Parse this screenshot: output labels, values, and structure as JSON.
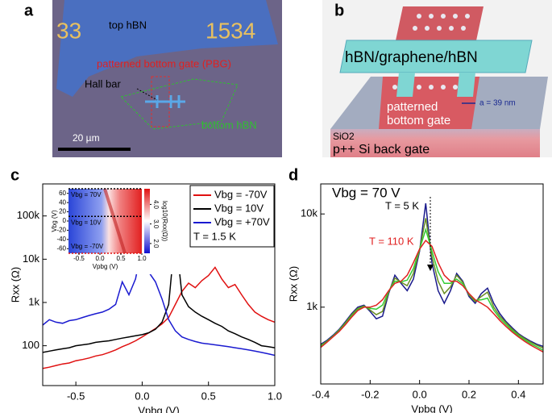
{
  "panels": {
    "a": {
      "label": "a",
      "digits_left": "33",
      "digits_right": "1534",
      "top": "top hBN",
      "pbg": "patterned bottom gate (PBG)",
      "hall": "Hall bar",
      "bottom": "bottom hBN",
      "scale": "20 µm"
    },
    "b": {
      "label": "b",
      "stack": "hBN/graphene/hBN",
      "gate": [
        "patterned",
        "bottom gate"
      ],
      "period": "a = 39 nm",
      "oxide": "SiO2",
      "back": "p++ Si back gate"
    }
  },
  "chart_data": [
    {
      "type": "line",
      "panel_label": "c",
      "log_y": true,
      "xlabel": "Vpbg (V)",
      "ylabel": "Rxx (Ω)",
      "xlim": [
        -0.75,
        1.0
      ],
      "ylim": [
        12,
        550000
      ],
      "xticks": [
        -0.5,
        {
          "value": 0,
          "label": "0.0"
        },
        0.5,
        {
          "value": 1,
          "label": "1.0"
        }
      ],
      "yticks": [
        100,
        {
          "value": 1000,
          "label": "1k"
        },
        {
          "value": 10000,
          "label": "10k"
        },
        {
          "value": 100000,
          "label": "100k"
        }
      ],
      "x": [
        -0.75,
        -0.7,
        -0.65,
        -0.6,
        -0.55,
        -0.5,
        -0.45,
        -0.4,
        -0.35,
        -0.3,
        -0.25,
        -0.2,
        -0.15,
        -0.1,
        -0.05,
        0,
        0.05,
        0.1,
        0.15,
        0.2,
        0.25,
        0.3,
        0.35,
        0.4,
        0.45,
        0.5,
        0.55,
        0.6,
        0.65,
        0.7,
        0.75,
        0.8,
        0.85,
        0.9,
        0.95,
        1.0
      ],
      "series": [
        {
          "name": "Vbg = -70V",
          "color": "#e01010",
          "values": [
            30,
            32,
            35,
            38,
            40,
            45,
            48,
            52,
            58,
            62,
            70,
            80,
            95,
            110,
            130,
            160,
            200,
            250,
            320,
            450,
            900,
            1800,
            2800,
            2200,
            3200,
            4200,
            6500,
            3500,
            2200,
            2600,
            1500,
            900,
            600,
            480,
            400,
            350
          ]
        },
        {
          "name": "Vbg = 10V",
          "color": "#000000",
          "values": [
            70,
            75,
            80,
            85,
            90,
            100,
            105,
            110,
            120,
            125,
            130,
            140,
            150,
            160,
            170,
            180,
            200,
            240,
            350,
            900,
            40000,
            1500,
            800,
            600,
            480,
            400,
            330,
            280,
            220,
            190,
            160,
            140,
            120,
            100,
            95,
            90
          ]
        },
        {
          "name": "Vbg = +70V",
          "color": "#1a1ad0",
          "values": [
            300,
            400,
            350,
            330,
            380,
            400,
            450,
            500,
            550,
            600,
            700,
            900,
            3000,
            1500,
            3500,
            20000,
            5000,
            3000,
            1200,
            400,
            220,
            160,
            140,
            125,
            115,
            110,
            105,
            100,
            95,
            90,
            85,
            80,
            75,
            70,
            65,
            60
          ]
        }
      ],
      "annotation": "T = 1.5 K",
      "inset": {
        "xlabel": "Vpbg (V)",
        "ylabel": "Vbg (V)",
        "clabel": "log10(Rxx(Ω))",
        "xlim": [
          -0.75,
          1.0
        ],
        "ylim": [
          -70,
          70
        ],
        "clim": [
          1.5,
          4.8
        ],
        "xticks": [
          -0.5,
          {
            "value": 0,
            "label": "0.0"
          },
          0.5,
          {
            "value": 1,
            "label": "1.0"
          }
        ],
        "yticks": [
          -60,
          -40,
          -20,
          0,
          20,
          40,
          60
        ],
        "cticks": [
          {
            "value": 2,
            "label": "2.0"
          },
          {
            "value": 3,
            "label": "3.0"
          },
          {
            "value": 4,
            "label": "4.0"
          }
        ],
        "lines": [
          {
            "value": 70,
            "label": "Vbg = 70V",
            "color": "#000000"
          },
          {
            "value": 10,
            "label": "Vbg = 10V",
            "color": "#000000"
          },
          {
            "value": -70,
            "label": "Vbg = -70V",
            "color": "#e01010"
          }
        ]
      }
    },
    {
      "type": "line",
      "panel_label": "d",
      "log_y": true,
      "xlabel": "Vpbg (V)",
      "ylabel": "Rxx (Ω)",
      "xlim": [
        -0.4,
        0.5
      ],
      "ylim": [
        150,
        21000
      ],
      "xticks": [
        -0.4,
        -0.2,
        {
          "value": 0,
          "label": "0.0"
        },
        0.2,
        0.4
      ],
      "yticks": [
        {
          "value": 1000,
          "label": "1k"
        },
        {
          "value": 10000,
          "label": "10k"
        }
      ],
      "x": [
        -0.4,
        -0.375,
        -0.35,
        -0.325,
        -0.3,
        -0.275,
        -0.25,
        -0.225,
        -0.2,
        -0.175,
        -0.15,
        -0.125,
        -0.1,
        -0.075,
        -0.05,
        -0.025,
        0,
        0.025,
        0.05,
        0.075,
        0.1,
        0.125,
        0.15,
        0.175,
        0.2,
        0.225,
        0.25,
        0.275,
        0.3,
        0.325,
        0.35,
        0.375,
        0.4,
        0.425,
        0.45,
        0.475,
        0.5
      ],
      "series": [
        {
          "color": "#1a1a8c",
          "values": [
            400,
            440,
            500,
            580,
            700,
            850,
            1000,
            1050,
            900,
            750,
            800,
            1400,
            2200,
            1800,
            1500,
            2000,
            4000,
            13000,
            3000,
            1500,
            1100,
            1500,
            2300,
            1900,
            1300,
            1100,
            1400,
            1600,
            1100,
            850,
            700,
            600,
            520,
            470,
            430,
            400,
            380
          ]
        },
        {
          "color": "#6b8e23",
          "values": [
            390,
            430,
            490,
            570,
            680,
            830,
            970,
            1030,
            930,
            830,
            900,
            1450,
            2050,
            1850,
            1700,
            2300,
            4100,
            9000,
            3500,
            1900,
            1400,
            1650,
            2200,
            1850,
            1350,
            1150,
            1300,
            1450,
            1000,
            800,
            680,
            580,
            510,
            460,
            420,
            390,
            365
          ]
        },
        {
          "color": "#33cc33",
          "values": [
            380,
            425,
            485,
            560,
            665,
            800,
            940,
            1010,
            970,
            950,
            1050,
            1480,
            1900,
            1870,
            1950,
            2600,
            4200,
            6800,
            4000,
            2400,
            1800,
            1800,
            2000,
            1780,
            1380,
            1180,
            1200,
            1250,
            930,
            760,
            650,
            560,
            495,
            445,
            405,
            375,
            345
          ]
        },
        {
          "color": "#e02020",
          "values": [
            370,
            420,
            480,
            550,
            650,
            780,
            920,
            1000,
            1000,
            1050,
            1200,
            1500,
            1800,
            1900,
            2200,
            3000,
            4200,
            5200,
            4500,
            3000,
            2200,
            1900,
            1900,
            1700,
            1400,
            1200,
            1100,
            1000,
            850,
            720,
            620,
            540,
            480,
            430,
            390,
            360,
            330
          ]
        }
      ],
      "annotations": [
        "Vbg = 70 V",
        "T = 5 K",
        "T = 110 K"
      ]
    }
  ]
}
